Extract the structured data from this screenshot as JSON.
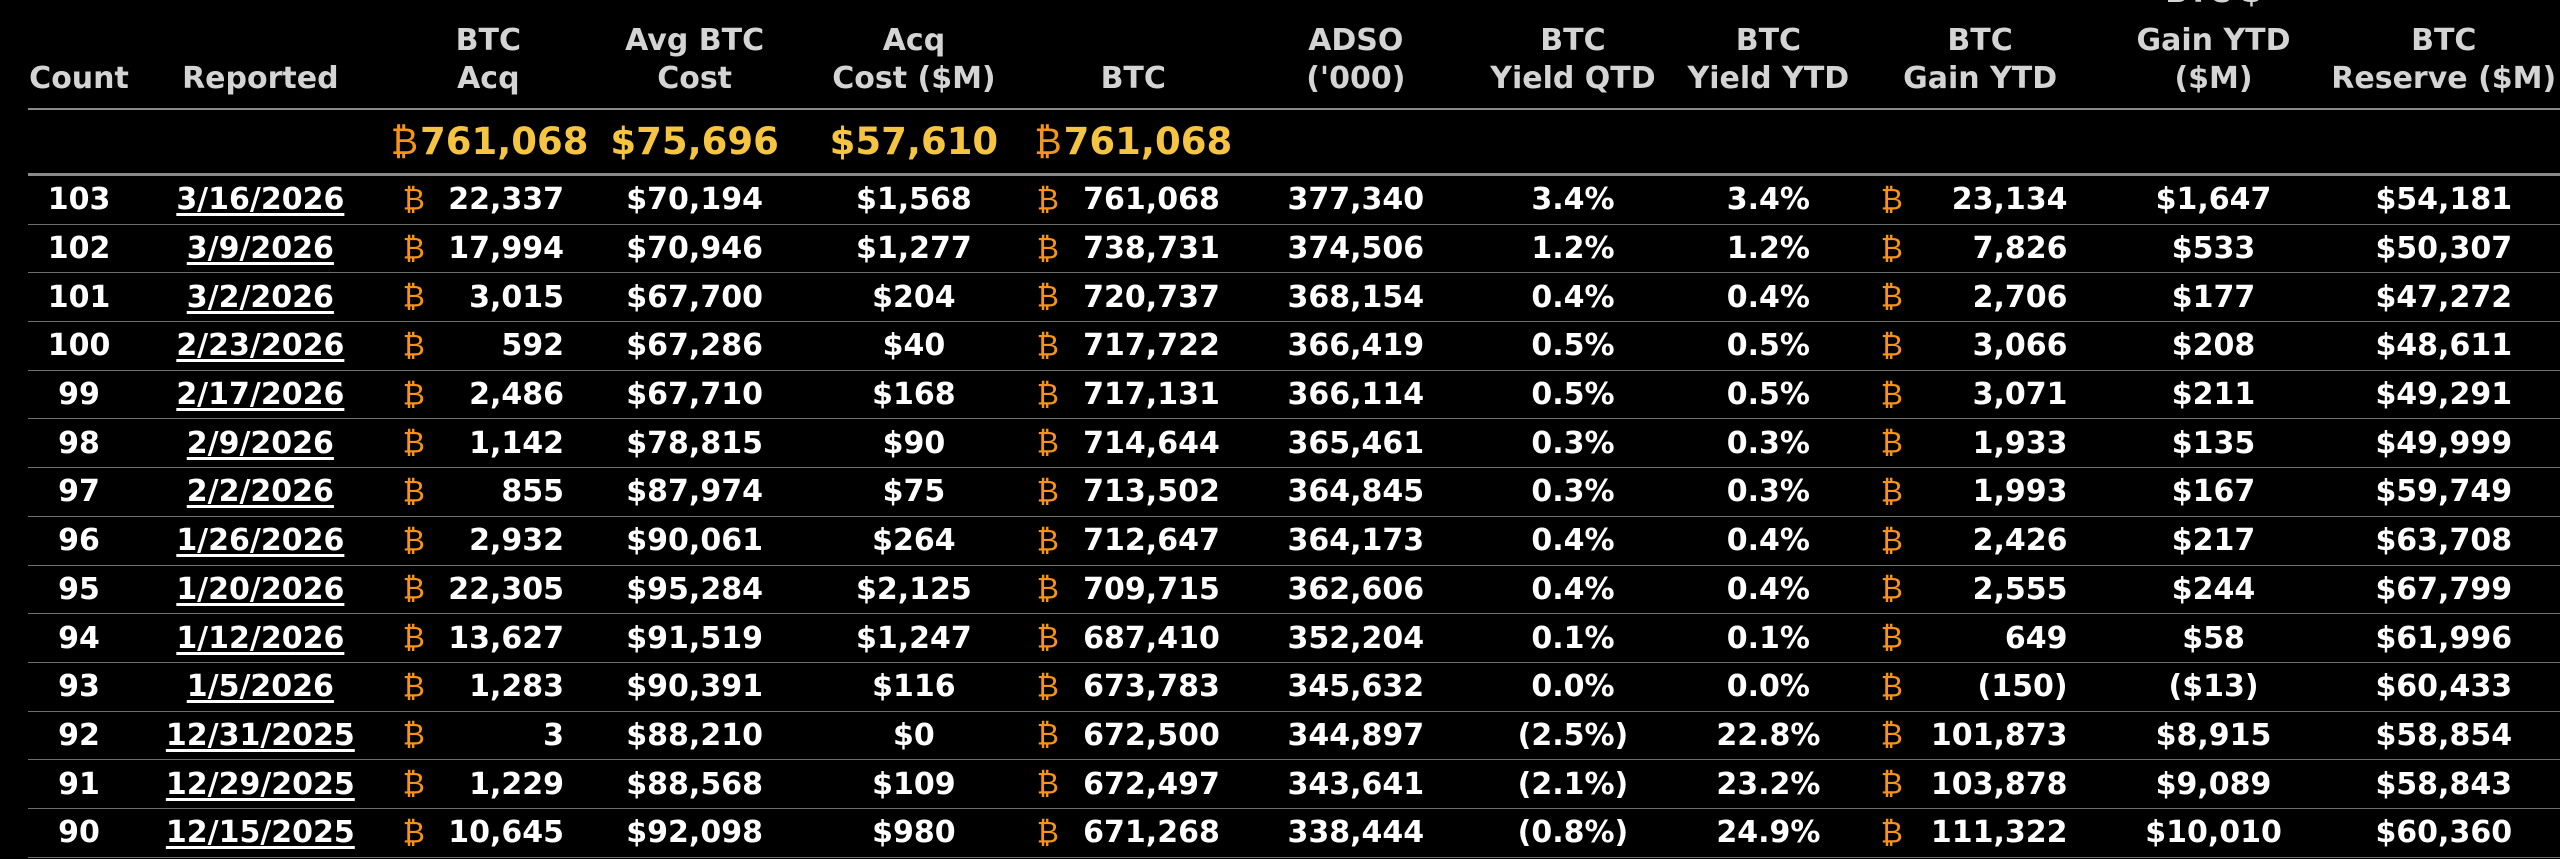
{
  "headers": {
    "count": [
      "Count"
    ],
    "reported": [
      "Reported"
    ],
    "btc_acq": [
      "BTC",
      "Acq"
    ],
    "avg_cost": [
      "Avg BTC",
      "Cost"
    ],
    "acq_cost": [
      "Acq",
      "Cost ($M)"
    ],
    "btc": [
      "BTC"
    ],
    "adso": [
      "ADSO",
      "('000)"
    ],
    "yield_qtd": [
      "BTC",
      "Yield QTD"
    ],
    "yield_ytd": [
      "BTC",
      "Yield YTD"
    ],
    "gain_ytd": [
      "BTC",
      "Gain YTD"
    ],
    "gain_usd": [
      "BTC $",
      "Gain YTD",
      "($M)"
    ],
    "reserve": [
      "BTC",
      "Reserve ($M)"
    ]
  },
  "currency_symbol": "₿",
  "colors": {
    "background": "#000000",
    "btc_symbol": "#f7931a",
    "totals": "#f5c542",
    "header_text": "#d4d4d4"
  },
  "totals": {
    "btc_acq": "761,068",
    "avg_cost": "$75,696",
    "acq_cost": "$57,610",
    "btc": "761,068"
  },
  "rows": [
    {
      "count": "103",
      "reported": "3/16/2026",
      "btc_acq": "22,337",
      "avg_cost": "$70,194",
      "acq_cost": "$1,568",
      "btc": "761,068",
      "adso": "377,340",
      "yield_qtd": "3.4%",
      "yield_ytd": "3.4%",
      "gain_ytd": "23,134",
      "gain_usd": "$1,647",
      "reserve": "$54,181"
    },
    {
      "count": "102",
      "reported": "3/9/2026",
      "btc_acq": "17,994",
      "avg_cost": "$70,946",
      "acq_cost": "$1,277",
      "btc": "738,731",
      "adso": "374,506",
      "yield_qtd": "1.2%",
      "yield_ytd": "1.2%",
      "gain_ytd": "7,826",
      "gain_usd": "$533",
      "reserve": "$50,307"
    },
    {
      "count": "101",
      "reported": "3/2/2026",
      "btc_acq": "3,015",
      "avg_cost": "$67,700",
      "acq_cost": "$204",
      "btc": "720,737",
      "adso": "368,154",
      "yield_qtd": "0.4%",
      "yield_ytd": "0.4%",
      "gain_ytd": "2,706",
      "gain_usd": "$177",
      "reserve": "$47,272"
    },
    {
      "count": "100",
      "reported": "2/23/2026",
      "btc_acq": "592",
      "avg_cost": "$67,286",
      "acq_cost": "$40",
      "btc": "717,722",
      "adso": "366,419",
      "yield_qtd": "0.5%",
      "yield_ytd": "0.5%",
      "gain_ytd": "3,066",
      "gain_usd": "$208",
      "reserve": "$48,611"
    },
    {
      "count": "99",
      "reported": "2/17/2026",
      "btc_acq": "2,486",
      "avg_cost": "$67,710",
      "acq_cost": "$168",
      "btc": "717,131",
      "adso": "366,114",
      "yield_qtd": "0.5%",
      "yield_ytd": "0.5%",
      "gain_ytd": "3,071",
      "gain_usd": "$211",
      "reserve": "$49,291"
    },
    {
      "count": "98",
      "reported": "2/9/2026",
      "btc_acq": "1,142",
      "avg_cost": "$78,815",
      "acq_cost": "$90",
      "btc": "714,644",
      "adso": "365,461",
      "yield_qtd": "0.3%",
      "yield_ytd": "0.3%",
      "gain_ytd": "1,933",
      "gain_usd": "$135",
      "reserve": "$49,999"
    },
    {
      "count": "97",
      "reported": "2/2/2026",
      "btc_acq": "855",
      "avg_cost": "$87,974",
      "acq_cost": "$75",
      "btc": "713,502",
      "adso": "364,845",
      "yield_qtd": "0.3%",
      "yield_ytd": "0.3%",
      "gain_ytd": "1,993",
      "gain_usd": "$167",
      "reserve": "$59,749"
    },
    {
      "count": "96",
      "reported": "1/26/2026",
      "btc_acq": "2,932",
      "avg_cost": "$90,061",
      "acq_cost": "$264",
      "btc": "712,647",
      "adso": "364,173",
      "yield_qtd": "0.4%",
      "yield_ytd": "0.4%",
      "gain_ytd": "2,426",
      "gain_usd": "$217",
      "reserve": "$63,708"
    },
    {
      "count": "95",
      "reported": "1/20/2026",
      "btc_acq": "22,305",
      "avg_cost": "$95,284",
      "acq_cost": "$2,125",
      "btc": "709,715",
      "adso": "362,606",
      "yield_qtd": "0.4%",
      "yield_ytd": "0.4%",
      "gain_ytd": "2,555",
      "gain_usd": "$244",
      "reserve": "$67,799"
    },
    {
      "count": "94",
      "reported": "1/12/2026",
      "btc_acq": "13,627",
      "avg_cost": "$91,519",
      "acq_cost": "$1,247",
      "btc": "687,410",
      "adso": "352,204",
      "yield_qtd": "0.1%",
      "yield_ytd": "0.1%",
      "gain_ytd": "649",
      "gain_usd": "$58",
      "reserve": "$61,996"
    },
    {
      "count": "93",
      "reported": "1/5/2026",
      "btc_acq": "1,283",
      "avg_cost": "$90,391",
      "acq_cost": "$116",
      "btc": "673,783",
      "adso": "345,632",
      "yield_qtd": "0.0%",
      "yield_ytd": "0.0%",
      "gain_ytd": "(150)",
      "gain_usd": "($13)",
      "reserve": "$60,433"
    },
    {
      "count": "92",
      "reported": "12/31/2025",
      "btc_acq": "3",
      "avg_cost": "$88,210",
      "acq_cost": "$0",
      "btc": "672,500",
      "adso": "344,897",
      "yield_qtd": "(2.5%)",
      "yield_ytd": "22.8%",
      "gain_ytd": "101,873",
      "gain_usd": "$8,915",
      "reserve": "$58,854"
    },
    {
      "count": "91",
      "reported": "12/29/2025",
      "btc_acq": "1,229",
      "avg_cost": "$88,568",
      "acq_cost": "$109",
      "btc": "672,497",
      "adso": "343,641",
      "yield_qtd": "(2.1%)",
      "yield_ytd": "23.2%",
      "gain_ytd": "103,878",
      "gain_usd": "$9,089",
      "reserve": "$58,843"
    },
    {
      "count": "90",
      "reported": "12/15/2025",
      "btc_acq": "10,645",
      "avg_cost": "$92,098",
      "acq_cost": "$980",
      "btc": "671,268",
      "adso": "338,444",
      "yield_qtd": "(0.8%)",
      "yield_ytd": "24.9%",
      "gain_ytd": "111,322",
      "gain_usd": "$10,010",
      "reserve": "$60,360"
    }
  ]
}
